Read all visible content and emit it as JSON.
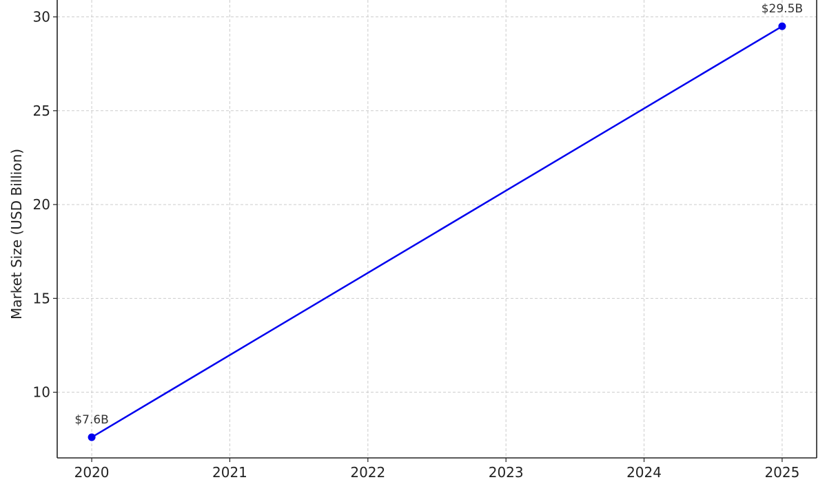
{
  "chart_data": {
    "type": "line",
    "title": "",
    "xlabel": "",
    "ylabel": "Market Size (USD Billion)",
    "x": [
      2020,
      2025
    ],
    "series": [
      {
        "values": [
          7.6,
          29.5
        ],
        "color": "#0000ee",
        "labels": [
          "$7.6B",
          "$29.5B"
        ]
      }
    ],
    "x_ticks": [
      "2020",
      "2021",
      "2022",
      "2023",
      "2024",
      "2025"
    ],
    "y_ticks": [
      "10",
      "15",
      "20",
      "25",
      "30"
    ],
    "xlim": [
      2019.75,
      2025.25
    ],
    "ylim": [
      6.5,
      30.9
    ],
    "grid": true,
    "grid_style": "dashed"
  }
}
